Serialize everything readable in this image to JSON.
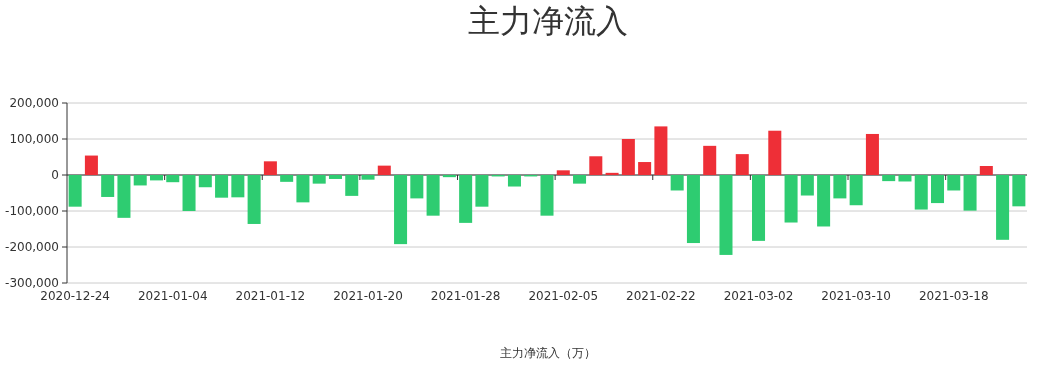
{
  "chart_data": {
    "type": "bar",
    "title": "主力净流入",
    "xlabel": "主力净流入（万）",
    "categories": [
      "2020-12-24",
      null,
      null,
      null,
      null,
      null,
      "2021-01-04",
      null,
      null,
      null,
      null,
      null,
      "2021-01-12",
      null,
      null,
      null,
      null,
      null,
      "2021-01-20",
      null,
      null,
      null,
      null,
      null,
      "2021-01-28",
      null,
      null,
      null,
      null,
      null,
      "2021-02-05",
      null,
      null,
      null,
      null,
      null,
      "2021-02-22",
      null,
      null,
      null,
      null,
      null,
      "2021-03-02",
      null,
      null,
      null,
      null,
      null,
      "2021-03-10",
      null,
      null,
      null,
      null,
      null,
      "2021-03-18",
      null,
      null,
      null,
      null
    ],
    "values": [
      -88000,
      54000,
      -61000,
      -119000,
      -29000,
      -15000,
      -20000,
      -100000,
      -34000,
      -63000,
      -62000,
      -136000,
      38000,
      -19000,
      -76000,
      -24000,
      -11000,
      -58000,
      -13000,
      26000,
      -192000,
      -65000,
      -113000,
      -6000,
      -133000,
      -88000,
      -4000,
      -32000,
      -4000,
      -113000,
      13000,
      -24000,
      52000,
      6000,
      100000,
      36000,
      135000,
      -43000,
      -189000,
      81000,
      -222000,
      58000,
      -183000,
      123000,
      -132000,
      -57000,
      -143000,
      -65000,
      -84000,
      114000,
      -17000,
      -18000,
      -96000,
      -78000,
      -43000,
      -99000,
      25000,
      -180000,
      -87000
    ],
    "colors": [
      "#2ecc71",
      "#ee2f37",
      "#2ecc71",
      "#2ecc71",
      "#2ecc71",
      "#2ecc71",
      "#2ecc71",
      "#2ecc71",
      "#2ecc71",
      "#2ecc71",
      "#2ecc71",
      "#2ecc71",
      "#ee2f37",
      "#2ecc71",
      "#2ecc71",
      "#2ecc71",
      "#2ecc71",
      "#2ecc71",
      "#2ecc71",
      "#ee2f37",
      "#2ecc71",
      "#2ecc71",
      "#2ecc71",
      "#2ecc71",
      "#2ecc71",
      "#2ecc71",
      "#2ecc71",
      "#2ecc71",
      "#2ecc71",
      "#2ecc71",
      "#ee2f37",
      "#2ecc71",
      "#ee2f37",
      "#ee2f37",
      "#ee2f37",
      "#ee2f37",
      "#ee2f37",
      "#2ecc71",
      "#2ecc71",
      "#ee2f37",
      "#2ecc71",
      "#ee2f37",
      "#2ecc71",
      "#ee2f37",
      "#2ecc71",
      "#2ecc71",
      "#2ecc71",
      "#2ecc71",
      "#2ecc71",
      "#ee2f37",
      "#2ecc71",
      "#2ecc71",
      "#2ecc71",
      "#2ecc71",
      "#2ecc71",
      "#2ecc71",
      "#ee2f37",
      "#2ecc71",
      "#2ecc71"
    ],
    "ylim": [
      -300000,
      200000
    ],
    "yticks": [
      {
        "value": -300000,
        "label": "-300,000"
      },
      {
        "value": -200000,
        "label": "-200,000"
      },
      {
        "value": -100000,
        "label": "-100,000"
      },
      {
        "value": 0,
        "label": "0"
      },
      {
        "value": 100000,
        "label": "100,000"
      },
      {
        "value": 200000,
        "label": "200,000"
      }
    ],
    "grid": "y"
  }
}
